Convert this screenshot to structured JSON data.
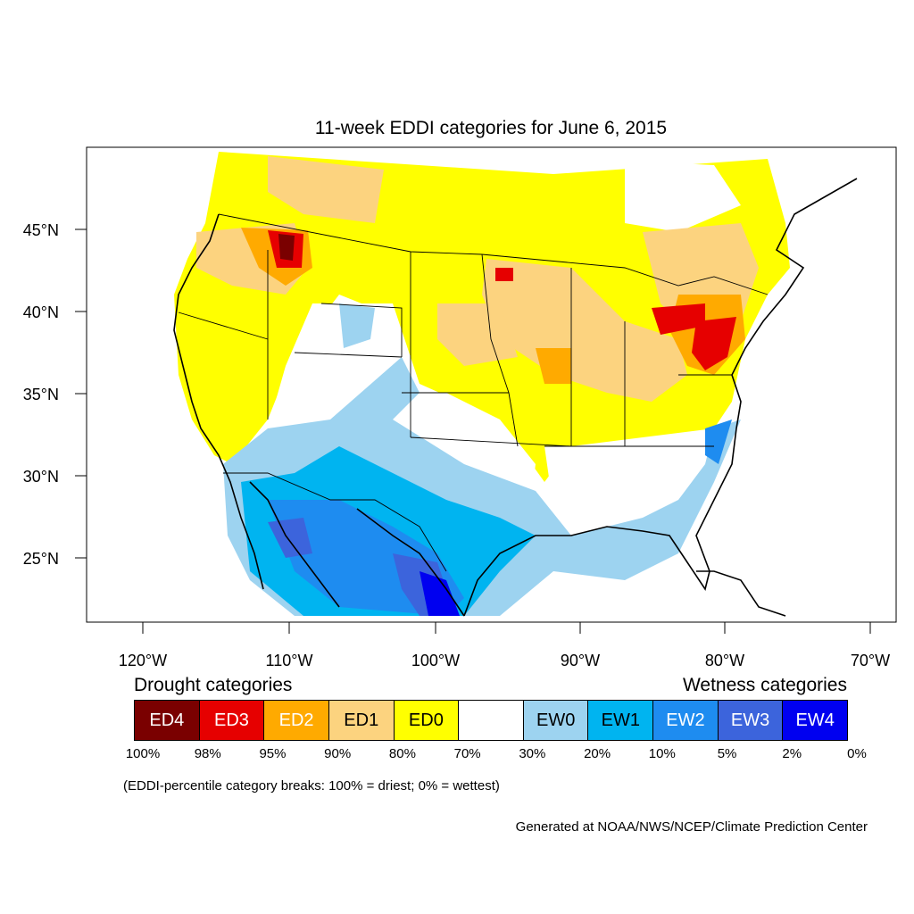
{
  "title": "11-week EDDI categories for June 6, 2015",
  "axes": {
    "lat_labels": [
      "45°N",
      "40°N",
      "35°N",
      "30°N",
      "25°N"
    ],
    "lon_labels": [
      "120°W",
      "110°W",
      "100°W",
      "90°W",
      "80°W",
      "70°W"
    ]
  },
  "legend": {
    "drought_heading": "Drought categories",
    "wetness_heading": "Wetness categories",
    "categories": [
      {
        "label": "ED4",
        "color": "#7a0000",
        "text_color": "#ffffff"
      },
      {
        "label": "ED3",
        "color": "#e60000",
        "text_color": "#ffffff"
      },
      {
        "label": "ED2",
        "color": "#ffaa00",
        "text_color": "#ffffff"
      },
      {
        "label": "ED1",
        "color": "#fcd37f",
        "text_color": "#000000"
      },
      {
        "label": "ED0",
        "color": "#ffff00",
        "text_color": "#000000"
      },
      {
        "label": "",
        "color": "#ffffff",
        "text_color": "#000000"
      },
      {
        "label": "EW0",
        "color": "#9dd3f0",
        "text_color": "#000000"
      },
      {
        "label": "EW1",
        "color": "#00b4f0",
        "text_color": "#000000"
      },
      {
        "label": "EW2",
        "color": "#1e8cf0",
        "text_color": "#ffffff"
      },
      {
        "label": "EW3",
        "color": "#3c64dc",
        "text_color": "#ffffff"
      },
      {
        "label": "EW4",
        "color": "#0000f0",
        "text_color": "#ffffff"
      }
    ],
    "breaks": [
      "100%",
      "98%",
      "95%",
      "90%",
      "80%",
      "70%",
      "30%",
      "20%",
      "10%",
      "5%",
      "2%",
      "0%"
    ]
  },
  "note": "(EDDI-percentile category breaks: 100% = driest; 0% = wettest)",
  "credit": "Generated at NOAA/NWS/NCEP/Climate Prediction Center"
}
